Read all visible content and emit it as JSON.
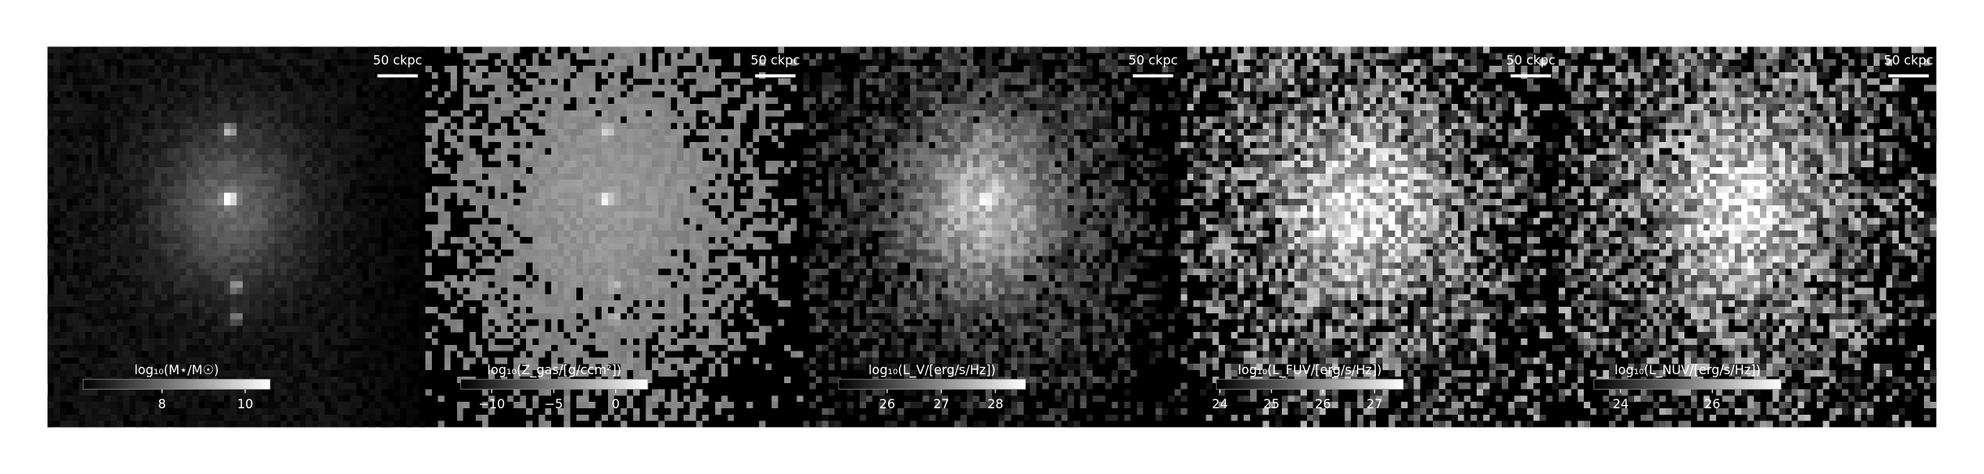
{
  "chart_data": [
    {
      "type": "image",
      "colorbar_label": "log₁₀(M⋆/M☉)",
      "scale_bar_label": "50 ckpc",
      "clim": [
        6.1,
        10.6
      ],
      "ticks": [
        8,
        10
      ]
    },
    {
      "type": "image",
      "colorbar_label": "log₁₀(Z_gas/[g/ccm²])",
      "scale_bar_label": "50 ckpc",
      "clim": [
        -12.5,
        2.6
      ],
      "ticks": [
        {
          "value": -10,
          "label": "−10"
        },
        {
          "value": -5,
          "label": "−5"
        },
        0
      ]
    },
    {
      "type": "image",
      "colorbar_label": "log₁₀(L_V/[erg/s/Hz])",
      "scale_bar_label": "50 ckpc",
      "clim": [
        25.1,
        28.56
      ],
      "ticks": [
        26,
        27,
        28
      ]
    },
    {
      "type": "image",
      "colorbar_label": "log₁₀(L_FUV/[erg/s/Hz])",
      "scale_bar_label": "50 ckpc",
      "clim": [
        23.93,
        27.56
      ],
      "ticks": [
        24,
        25,
        26,
        27
      ]
    },
    {
      "type": "image",
      "colorbar_label": "log₁₀(L_NUV/[erg/s/Hz])",
      "scale_bar_label": "50 ckpc",
      "clim": [
        23.42,
        27.5
      ],
      "ticks": [
        24,
        26
      ]
    }
  ]
}
